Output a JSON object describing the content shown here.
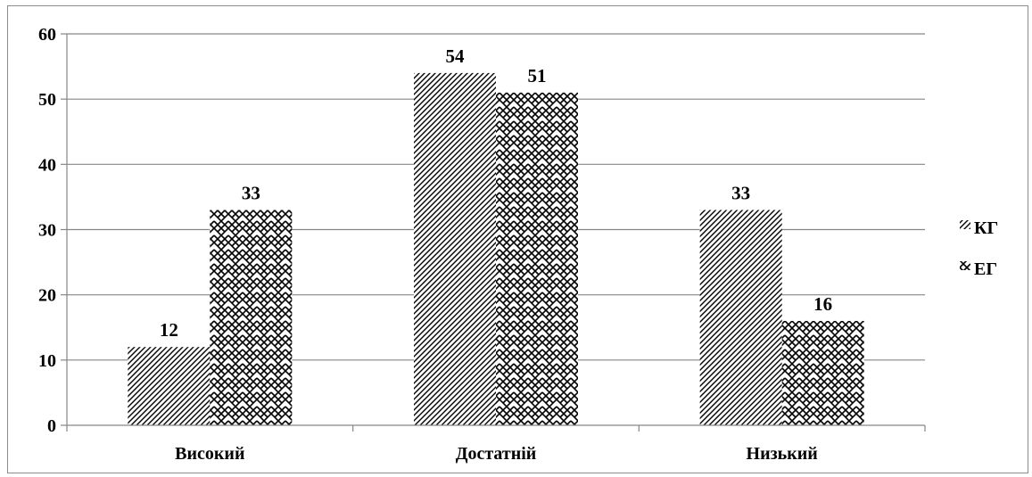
{
  "chart_data": {
    "type": "bar",
    "categories": [
      "Високий",
      "Достатній",
      "Низький"
    ],
    "series": [
      {
        "name": "КГ",
        "values": [
          12,
          54,
          33
        ],
        "pattern": "diagonal-hatch"
      },
      {
        "name": "ЕГ",
        "values": [
          33,
          51,
          16
        ],
        "pattern": "zigzag-weave"
      }
    ],
    "ylim": [
      0,
      60
    ],
    "yticks": [
      0,
      10,
      20,
      30,
      40,
      50,
      60
    ],
    "grid": true,
    "legend": "right",
    "data_labels": true,
    "colors": {
      "ink": "#000000",
      "grid": "#868686",
      "axis": "#868686"
    }
  }
}
